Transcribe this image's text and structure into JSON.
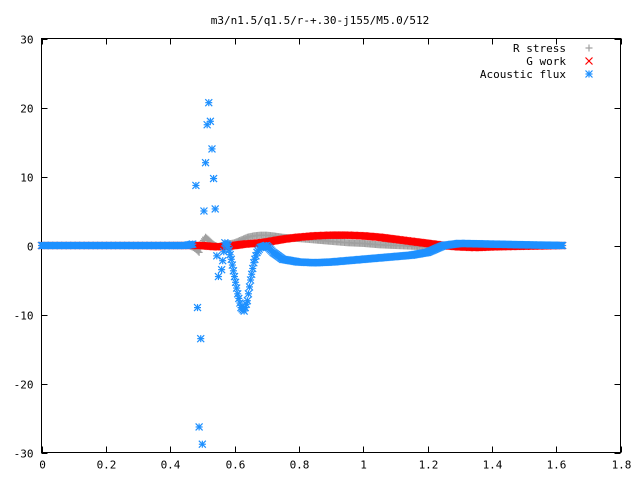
{
  "chart_data": {
    "type": "scatter",
    "title": "m3/n1.5/q1.5/r-+.30-j155/M5.0/512",
    "xlabel": "",
    "ylabel": "",
    "xlim": [
      0,
      1.8
    ],
    "ylim": [
      -30,
      30
    ],
    "x_ticks": [
      "0",
      "0.2",
      "0.4",
      "0.6",
      "0.8",
      "1",
      "1.2",
      "1.4",
      "1.6",
      "1.8"
    ],
    "y_ticks": [
      "30",
      "20",
      "10",
      "0",
      "-10",
      "-20",
      "-30"
    ],
    "grid": false,
    "legend_position": "top-right",
    "series": [
      {
        "name": "R stress",
        "marker": "plus",
        "color": "#a0a0a0",
        "x": [
          0.0,
          0.2,
          0.4,
          0.46,
          0.48,
          0.49,
          0.5,
          0.51,
          0.52,
          0.53,
          0.54,
          0.55,
          0.56,
          0.58,
          0.6,
          0.62,
          0.64,
          0.66,
          0.68,
          0.7,
          0.72,
          0.75,
          0.8,
          0.85,
          0.9,
          0.95,
          1.0,
          1.05,
          1.1,
          1.15,
          1.2,
          1.25,
          1.3,
          1.4,
          1.5,
          1.62
        ],
        "y": [
          0.0,
          0.0,
          0.0,
          0.0,
          -0.5,
          -1.0,
          0.5,
          1.2,
          0.8,
          0.3,
          0.0,
          -0.2,
          0.0,
          0.2,
          0.4,
          0.8,
          1.2,
          1.4,
          1.5,
          1.5,
          1.4,
          1.2,
          1.0,
          0.8,
          0.6,
          0.4,
          0.3,
          0.1,
          0.0,
          -0.1,
          -0.2,
          0.0,
          0.1,
          0.1,
          0.0,
          0.0
        ]
      },
      {
        "name": "G work",
        "marker": "cross",
        "color": "#ff0000",
        "x": [
          0.0,
          0.2,
          0.4,
          0.47,
          0.5,
          0.52,
          0.55,
          0.58,
          0.6,
          0.63,
          0.66,
          0.7,
          0.75,
          0.8,
          0.85,
          0.9,
          0.95,
          1.0,
          1.05,
          1.1,
          1.15,
          1.2,
          1.25,
          1.3,
          1.35,
          1.4,
          1.5,
          1.62
        ],
        "y": [
          0.0,
          0.0,
          0.0,
          0.0,
          0.0,
          -0.1,
          -0.2,
          -0.1,
          0.0,
          0.2,
          0.3,
          0.5,
          0.9,
          1.2,
          1.4,
          1.5,
          1.5,
          1.4,
          1.2,
          0.9,
          0.6,
          0.3,
          0.0,
          -0.2,
          -0.3,
          -0.2,
          -0.1,
          0.0
        ]
      },
      {
        "name": "Acoustic flux",
        "marker": "star",
        "color": "#1e90ff",
        "x": [
          0.0,
          0.1,
          0.2,
          0.3,
          0.4,
          0.45,
          0.47,
          0.48,
          0.485,
          0.49,
          0.495,
          0.5,
          0.505,
          0.51,
          0.515,
          0.52,
          0.525,
          0.53,
          0.535,
          0.54,
          0.545,
          0.55,
          0.56,
          0.57,
          0.58,
          0.59,
          0.6,
          0.61,
          0.62,
          0.63,
          0.64,
          0.65,
          0.66,
          0.67,
          0.68,
          0.7,
          0.72,
          0.75,
          0.8,
          0.85,
          0.9,
          0.95,
          1.0,
          1.05,
          1.1,
          1.15,
          1.2,
          1.25,
          1.3,
          1.4,
          1.5,
          1.62
        ],
        "y": [
          0.0,
          0.0,
          0.0,
          0.0,
          0.0,
          0.0,
          0.2,
          8.7,
          -9.0,
          -26.3,
          -13.5,
          -28.8,
          5.0,
          12.0,
          17.5,
          20.7,
          18.0,
          14.0,
          9.7,
          5.3,
          -1.5,
          -4.5,
          -3.5,
          0.4,
          0.0,
          -2.0,
          -4.5,
          -7.0,
          -9.0,
          -9.5,
          -8.0,
          -5.0,
          -2.5,
          -1.0,
          -0.3,
          0.0,
          -1.0,
          -2.0,
          -2.4,
          -2.5,
          -2.4,
          -2.2,
          -2.0,
          -1.8,
          -1.6,
          -1.4,
          -1.0,
          0.0,
          0.3,
          0.2,
          0.1,
          0.0
        ]
      }
    ]
  }
}
